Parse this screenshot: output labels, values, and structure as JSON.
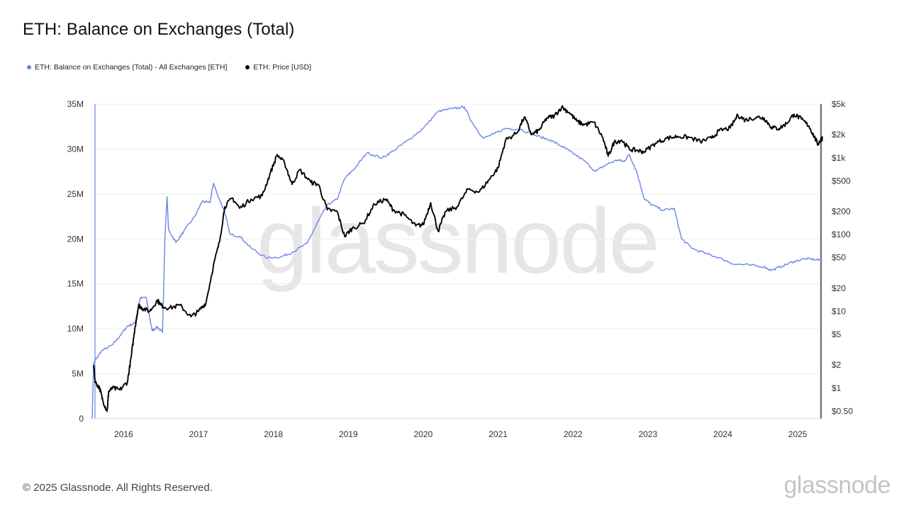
{
  "page": {
    "title": "ETH: Balance on Exchanges (Total)",
    "footer": "© 2025 Glassnode. All Rights Reserved.",
    "brand": "glassnode",
    "watermark": "glassnode"
  },
  "legend": [
    {
      "label": "ETH: Balance on Exchanges (Total) - All Exchanges [ETH]",
      "color": "#6b86e3",
      "icon": "dot-icon"
    },
    {
      "label": "ETH: Price [USD]",
      "color": "#000000",
      "icon": "dot-icon"
    }
  ],
  "chart_data": {
    "type": "line",
    "title": "ETH: Balance on Exchanges (Total)",
    "x_range": [
      2015.58,
      2025.33
    ],
    "x_ticks": [
      2016,
      2017,
      2018,
      2019,
      2020,
      2021,
      2022,
      2023,
      2024,
      2025
    ],
    "x_tick_labels": [
      "2016",
      "2017",
      "2018",
      "2019",
      "2020",
      "2021",
      "2022",
      "2023",
      "2024",
      "2025"
    ],
    "y_left": {
      "min": 0,
      "max": 35000000,
      "ticks": [
        0,
        5000000,
        10000000,
        15000000,
        20000000,
        25000000,
        30000000,
        35000000
      ],
      "labels": [
        "0",
        "5M",
        "10M",
        "15M",
        "20M",
        "25M",
        "30M",
        "35M"
      ]
    },
    "y_right": {
      "scale": "log",
      "min": 0.4,
      "max": 5000,
      "ticks": [
        0.5,
        1,
        2,
        5,
        10,
        20,
        50,
        100,
        200,
        500,
        1000,
        2000,
        5000
      ],
      "labels": [
        "$0.50",
        "$1",
        "$2",
        "$5",
        "$10",
        "$20",
        "$50",
        "$100",
        "$200",
        "$500",
        "$1k",
        "$2k",
        "$5k"
      ]
    },
    "grid": true,
    "series": [
      {
        "name": "ETH: Balance on Exchanges (Total) - All Exchanges [ETH]",
        "axis": "left",
        "color": "#6b86e3",
        "points": [
          [
            2015.58,
            0
          ],
          [
            2015.6,
            6200000
          ],
          [
            2015.7,
            7500000
          ],
          [
            2015.85,
            8200000
          ],
          [
            2015.95,
            9200000
          ],
          [
            2016.05,
            10300000
          ],
          [
            2016.15,
            10600000
          ],
          [
            2016.22,
            13400000
          ],
          [
            2016.3,
            13500000
          ],
          [
            2016.38,
            9800000
          ],
          [
            2016.45,
            10200000
          ],
          [
            2016.52,
            9600000
          ],
          [
            2016.55,
            19800000
          ],
          [
            2016.58,
            24700000
          ],
          [
            2016.6,
            21000000
          ],
          [
            2016.7,
            19600000
          ],
          [
            2016.8,
            20800000
          ],
          [
            2016.95,
            22500000
          ],
          [
            2017.05,
            24200000
          ],
          [
            2017.15,
            24000000
          ],
          [
            2017.2,
            26200000
          ],
          [
            2017.25,
            25000000
          ],
          [
            2017.35,
            23000000
          ],
          [
            2017.42,
            20500000
          ],
          [
            2017.55,
            20300000
          ],
          [
            2017.7,
            19000000
          ],
          [
            2017.9,
            17900000
          ],
          [
            2018.1,
            18000000
          ],
          [
            2018.25,
            18500000
          ],
          [
            2018.45,
            19500000
          ],
          [
            2018.6,
            22000000
          ],
          [
            2018.72,
            23800000
          ],
          [
            2018.85,
            24400000
          ],
          [
            2018.95,
            26700000
          ],
          [
            2019.1,
            28000000
          ],
          [
            2019.25,
            29600000
          ],
          [
            2019.45,
            29000000
          ],
          [
            2019.6,
            29800000
          ],
          [
            2019.8,
            31000000
          ],
          [
            2020.0,
            32300000
          ],
          [
            2020.2,
            34200000
          ],
          [
            2020.4,
            34500000
          ],
          [
            2020.55,
            34700000
          ],
          [
            2020.65,
            33000000
          ],
          [
            2020.8,
            31200000
          ],
          [
            2020.95,
            31700000
          ],
          [
            2021.1,
            32300000
          ],
          [
            2021.3,
            32200000
          ],
          [
            2021.5,
            31500000
          ],
          [
            2021.7,
            31000000
          ],
          [
            2021.85,
            30300000
          ],
          [
            2021.95,
            29800000
          ],
          [
            2022.15,
            28700000
          ],
          [
            2022.3,
            27500000
          ],
          [
            2022.45,
            28300000
          ],
          [
            2022.6,
            28800000
          ],
          [
            2022.68,
            28600000
          ],
          [
            2022.75,
            29400000
          ],
          [
            2022.85,
            27500000
          ],
          [
            2022.95,
            24500000
          ],
          [
            2023.05,
            23800000
          ],
          [
            2023.2,
            23200000
          ],
          [
            2023.35,
            23400000
          ],
          [
            2023.45,
            20000000
          ],
          [
            2023.6,
            18900000
          ],
          [
            2023.8,
            18300000
          ],
          [
            2023.95,
            17900000
          ],
          [
            2024.15,
            17200000
          ],
          [
            2024.35,
            17100000
          ],
          [
            2024.55,
            16900000
          ],
          [
            2024.65,
            16500000
          ],
          [
            2024.8,
            17000000
          ],
          [
            2024.95,
            17500000
          ],
          [
            2025.1,
            17800000
          ],
          [
            2025.25,
            17700000
          ],
          [
            2025.33,
            17600000
          ]
        ]
      },
      {
        "name": "ETH: Price [USD]",
        "axis": "right",
        "color": "#000000",
        "points": [
          [
            2015.6,
            2.0
          ],
          [
            2015.62,
            1.2
          ],
          [
            2015.68,
            1.0
          ],
          [
            2015.72,
            0.7
          ],
          [
            2015.78,
            0.5
          ],
          [
            2015.8,
            0.9
          ],
          [
            2015.85,
            1.0
          ],
          [
            2015.95,
            0.95
          ],
          [
            2016.05,
            1.2
          ],
          [
            2016.1,
            2.5
          ],
          [
            2016.15,
            6.0
          ],
          [
            2016.2,
            12.0
          ],
          [
            2016.25,
            11.0
          ],
          [
            2016.35,
            10.0
          ],
          [
            2016.45,
            14.0
          ],
          [
            2016.5,
            12.0
          ],
          [
            2016.6,
            11.0
          ],
          [
            2016.75,
            12.0
          ],
          [
            2016.9,
            8.5
          ],
          [
            2017.0,
            10.0
          ],
          [
            2017.1,
            13.0
          ],
          [
            2017.2,
            40.0
          ],
          [
            2017.28,
            80.0
          ],
          [
            2017.35,
            230.0
          ],
          [
            2017.45,
            300.0
          ],
          [
            2017.55,
            220.0
          ],
          [
            2017.7,
            290.0
          ],
          [
            2017.85,
            320.0
          ],
          [
            2017.95,
            600.0
          ],
          [
            2018.05,
            1100.0
          ],
          [
            2018.15,
            850.0
          ],
          [
            2018.25,
            450.0
          ],
          [
            2018.35,
            700.0
          ],
          [
            2018.5,
            480.0
          ],
          [
            2018.6,
            450.0
          ],
          [
            2018.72,
            210.0
          ],
          [
            2018.85,
            200.0
          ],
          [
            2018.95,
            95.0
          ],
          [
            2019.05,
            120.0
          ],
          [
            2019.2,
            140.0
          ],
          [
            2019.35,
            250.0
          ],
          [
            2019.5,
            290.0
          ],
          [
            2019.6,
            210.0
          ],
          [
            2019.75,
            180.0
          ],
          [
            2019.9,
            130.0
          ],
          [
            2020.0,
            135.0
          ],
          [
            2020.1,
            260.0
          ],
          [
            2020.2,
            110.0
          ],
          [
            2020.3,
            200.0
          ],
          [
            2020.45,
            230.0
          ],
          [
            2020.6,
            390.0
          ],
          [
            2020.75,
            360.0
          ],
          [
            2020.9,
            550.0
          ],
          [
            2021.0,
            740.0
          ],
          [
            2021.1,
            1700.0
          ],
          [
            2021.25,
            2100.0
          ],
          [
            2021.35,
            3400.0
          ],
          [
            2021.45,
            2000.0
          ],
          [
            2021.55,
            2300.0
          ],
          [
            2021.65,
            3300.0
          ],
          [
            2021.75,
            3500.0
          ],
          [
            2021.85,
            4600.0
          ],
          [
            2021.95,
            3900.0
          ],
          [
            2022.05,
            3000.0
          ],
          [
            2022.15,
            2700.0
          ],
          [
            2022.28,
            2900.0
          ],
          [
            2022.4,
            1800.0
          ],
          [
            2022.47,
            1050.0
          ],
          [
            2022.55,
            1600.0
          ],
          [
            2022.65,
            1700.0
          ],
          [
            2022.75,
            1300.0
          ],
          [
            2022.85,
            1250.0
          ],
          [
            2022.95,
            1200.0
          ],
          [
            2023.1,
            1550.0
          ],
          [
            2023.25,
            1800.0
          ],
          [
            2023.4,
            1900.0
          ],
          [
            2023.55,
            1850.0
          ],
          [
            2023.7,
            1630.0
          ],
          [
            2023.85,
            1800.0
          ],
          [
            2023.95,
            2250.0
          ],
          [
            2024.1,
            2450.0
          ],
          [
            2024.2,
            3600.0
          ],
          [
            2024.3,
            3100.0
          ],
          [
            2024.45,
            3400.0
          ],
          [
            2024.55,
            3300.0
          ],
          [
            2024.65,
            2500.0
          ],
          [
            2024.75,
            2400.0
          ],
          [
            2024.85,
            2800.0
          ],
          [
            2024.95,
            3700.0
          ],
          [
            2025.05,
            3200.0
          ],
          [
            2025.15,
            2600.0
          ],
          [
            2025.22,
            1900.0
          ],
          [
            2025.27,
            1500.0
          ],
          [
            2025.31,
            1750.0
          ],
          [
            2025.33,
            1800.0
          ]
        ]
      }
    ]
  }
}
